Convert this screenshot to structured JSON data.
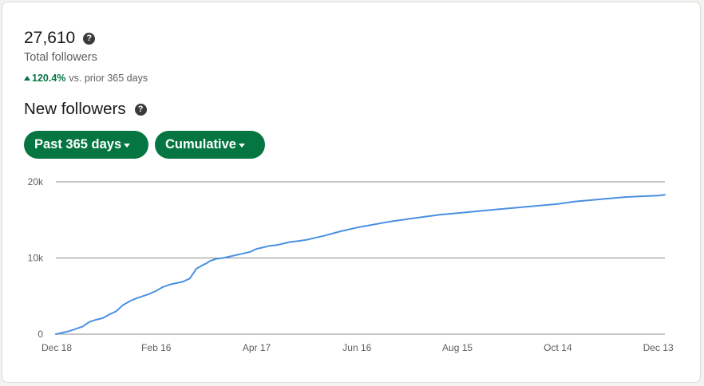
{
  "summary": {
    "total_value": "27,610",
    "total_label": "Total followers",
    "change_pct": "120.4%",
    "change_text": "vs. prior 365 days",
    "help_glyph": "?"
  },
  "section": {
    "title": "New followers"
  },
  "filters": {
    "range_label": "Past 365 days",
    "mode_label": "Cumulative"
  },
  "colors": {
    "accent_green": "#057642",
    "line_blue": "#4a90e2",
    "grid_gray": "#8c8c8c"
  },
  "chart_data": {
    "type": "line",
    "title": "",
    "xlabel": "",
    "ylabel": "",
    "ylim": [
      0,
      20000
    ],
    "y_ticks": [
      {
        "value": 0,
        "label": "0"
      },
      {
        "value": 10000,
        "label": "10k"
      },
      {
        "value": 20000,
        "label": "20k"
      }
    ],
    "x_ticks": [
      {
        "day": 0,
        "label": "Dec 18"
      },
      {
        "day": 60,
        "label": "Feb 16"
      },
      {
        "day": 120,
        "label": "Apr 17"
      },
      {
        "day": 180,
        "label": "Jun 16"
      },
      {
        "day": 240,
        "label": "Aug 15"
      },
      {
        "day": 300,
        "label": "Oct 14"
      },
      {
        "day": 360,
        "label": "Dec 13"
      }
    ],
    "grid": true,
    "series": [
      {
        "name": "",
        "x_days": [
          0,
          4,
          8,
          12,
          16,
          20,
          24,
          28,
          32,
          36,
          40,
          44,
          48,
          52,
          56,
          60,
          64,
          68,
          72,
          76,
          80,
          84,
          88,
          90,
          92,
          96,
          100,
          104,
          108,
          112,
          116,
          120,
          122,
          124,
          128,
          132,
          136,
          140,
          144,
          150,
          156,
          160,
          170,
          180,
          190,
          200,
          210,
          220,
          230,
          240,
          250,
          260,
          270,
          280,
          290,
          300,
          310,
          320,
          330,
          340,
          350,
          360,
          364
        ],
        "values": [
          0,
          200,
          400,
          700,
          1000,
          1600,
          1900,
          2100,
          2600,
          3000,
          3800,
          4300,
          4700,
          5000,
          5300,
          5700,
          6200,
          6500,
          6700,
          6900,
          7300,
          8600,
          9100,
          9300,
          9600,
          9900,
          10000,
          10200,
          10400,
          10600,
          10800,
          11200,
          11300,
          11400,
          11600,
          11700,
          11900,
          12100,
          12200,
          12400,
          12700,
          12900,
          13500,
          14000,
          14400,
          14800,
          15100,
          15400,
          15700,
          15900,
          16100,
          16300,
          16500,
          16700,
          16900,
          17100,
          17400,
          17600,
          17800,
          18000,
          18100,
          18200,
          18300
        ]
      }
    ]
  }
}
